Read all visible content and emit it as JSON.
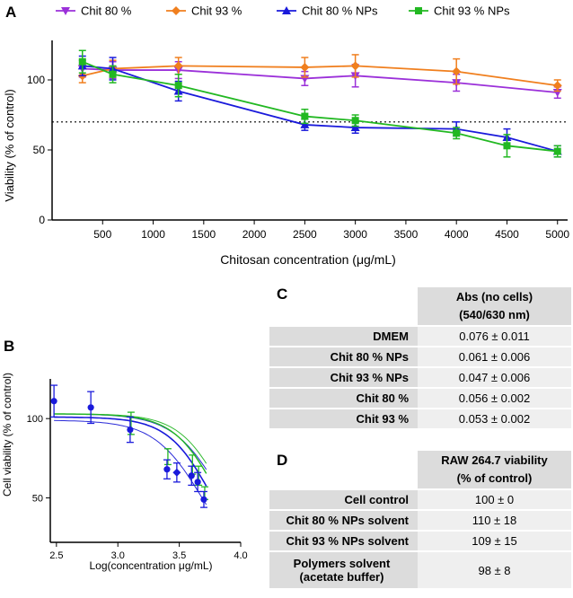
{
  "panels": {
    "a": "A",
    "b": "B",
    "c": "C",
    "d": "D"
  },
  "chart_data": [
    {
      "id": "A",
      "type": "line",
      "title": "",
      "xlabel": "Chitosan concentration (μg/mL)",
      "ylabel": "Viability (% of control)",
      "xlim": [
        0,
        5100
      ],
      "ylim": [
        0,
        125
      ],
      "xticks": [
        500,
        1000,
        1500,
        2000,
        2500,
        3000,
        3500,
        4000,
        4500,
        5000
      ],
      "yticks": [
        0,
        50,
        100
      ],
      "reference_line": 70,
      "x": [
        300,
        600,
        1250,
        2500,
        3000,
        4000,
        4500,
        5000
      ],
      "series": [
        {
          "name": "Chit 80 %",
          "color": "#9b30d9",
          "marker": "triangle-down",
          "x": [
            300,
            600,
            1250,
            2500,
            3000,
            4000,
            5000
          ],
          "values": [
            108,
            107,
            107,
            101,
            103,
            98,
            91
          ],
          "errors": [
            6,
            6,
            6,
            5,
            8,
            6,
            4
          ]
        },
        {
          "name": "Chit 93 %",
          "color": "#f07f1e",
          "marker": "diamond",
          "x": [
            300,
            600,
            1250,
            2500,
            3000,
            4000,
            5000
          ],
          "values": [
            103,
            108,
            110,
            109,
            110,
            106,
            96
          ],
          "errors": [
            5,
            6,
            6,
            7,
            8,
            9,
            4
          ]
        },
        {
          "name": "Chit 80 % NPs",
          "color": "#1a1adb",
          "marker": "triangle-up",
          "x": [
            300,
            600,
            1250,
            2500,
            3000,
            4000,
            4500,
            5000
          ],
          "values": [
            110,
            108,
            92,
            68,
            66,
            65,
            59,
            49
          ],
          "errors": [
            7,
            8,
            7,
            4,
            4,
            5,
            6,
            4
          ]
        },
        {
          "name": "Chit 93 % NPs",
          "color": "#22b822",
          "marker": "square",
          "x": [
            300,
            600,
            1250,
            2500,
            3000,
            4000,
            4500,
            5000
          ],
          "values": [
            113,
            104,
            96,
            74,
            71,
            62,
            53,
            49
          ],
          "errors": [
            8,
            6,
            8,
            5,
            4,
            4,
            8,
            4
          ]
        }
      ]
    },
    {
      "id": "B",
      "type": "scatter",
      "title": "",
      "xlabel": "Log(concentration μg/mL)",
      "ylabel": "Cell viability (% of control)",
      "xlim": [
        2.45,
        4.0
      ],
      "ylim": [
        22,
        125
      ],
      "xticks": [
        2.5,
        3.0,
        3.5,
        4.0
      ],
      "yticks": [
        50,
        100
      ],
      "points": {
        "x": [
          2.48,
          2.78,
          3.1,
          3.4,
          3.48,
          3.6,
          3.65,
          3.7
        ],
        "values": [
          111,
          107,
          93,
          68,
          66,
          64,
          60,
          49
        ],
        "errors": [
          10,
          10,
          8,
          6,
          6,
          6,
          6,
          5
        ]
      },
      "green_points": {
        "x": [
          3.1,
          3.4,
          3.6,
          3.65,
          3.7
        ],
        "values": [
          97,
          76,
          71,
          64,
          53
        ],
        "errors": [
          7,
          5,
          6,
          6,
          4
        ]
      },
      "fit": {
        "top": 101,
        "ec50_log": 3.77,
        "hill": 2.4
      },
      "fit_green": {
        "top": 103,
        "ec50_log": 3.82,
        "hill": 2.4
      },
      "confidence_band": {
        "top": [
          103,
          99
        ],
        "ec50_log": [
          3.85,
          3.69
        ],
        "hill": 2.2
      }
    }
  ],
  "table_c": {
    "header_line1": "Abs (no cells)",
    "header_line2": "(540/630 nm)",
    "rows": [
      {
        "label": "DMEM",
        "value": "0.076 ± 0.011"
      },
      {
        "label": "Chit 80 % NPs",
        "value": "0.061 ± 0.006"
      },
      {
        "label": "Chit 93 % NPs",
        "value": "0.047 ± 0.006"
      },
      {
        "label": "Chit 80 %",
        "value": "0.056 ± 0.002"
      },
      {
        "label": "Chit 93 %",
        "value": "0.053 ± 0.002"
      }
    ]
  },
  "table_d": {
    "header_line1": "RAW 264.7 viability",
    "header_line2": "(% of control)",
    "rows": [
      {
        "label": "Cell control",
        "value": "100 ± 0"
      },
      {
        "label": "Chit 80 % NPs solvent",
        "value": "110 ± 18"
      },
      {
        "label": "Chit 93 % NPs solvent",
        "value": "109 ± 15"
      },
      {
        "label_line1": "Polymers solvent",
        "label_line2": "(acetate buffer)",
        "value": "98 ± 8"
      }
    ]
  }
}
